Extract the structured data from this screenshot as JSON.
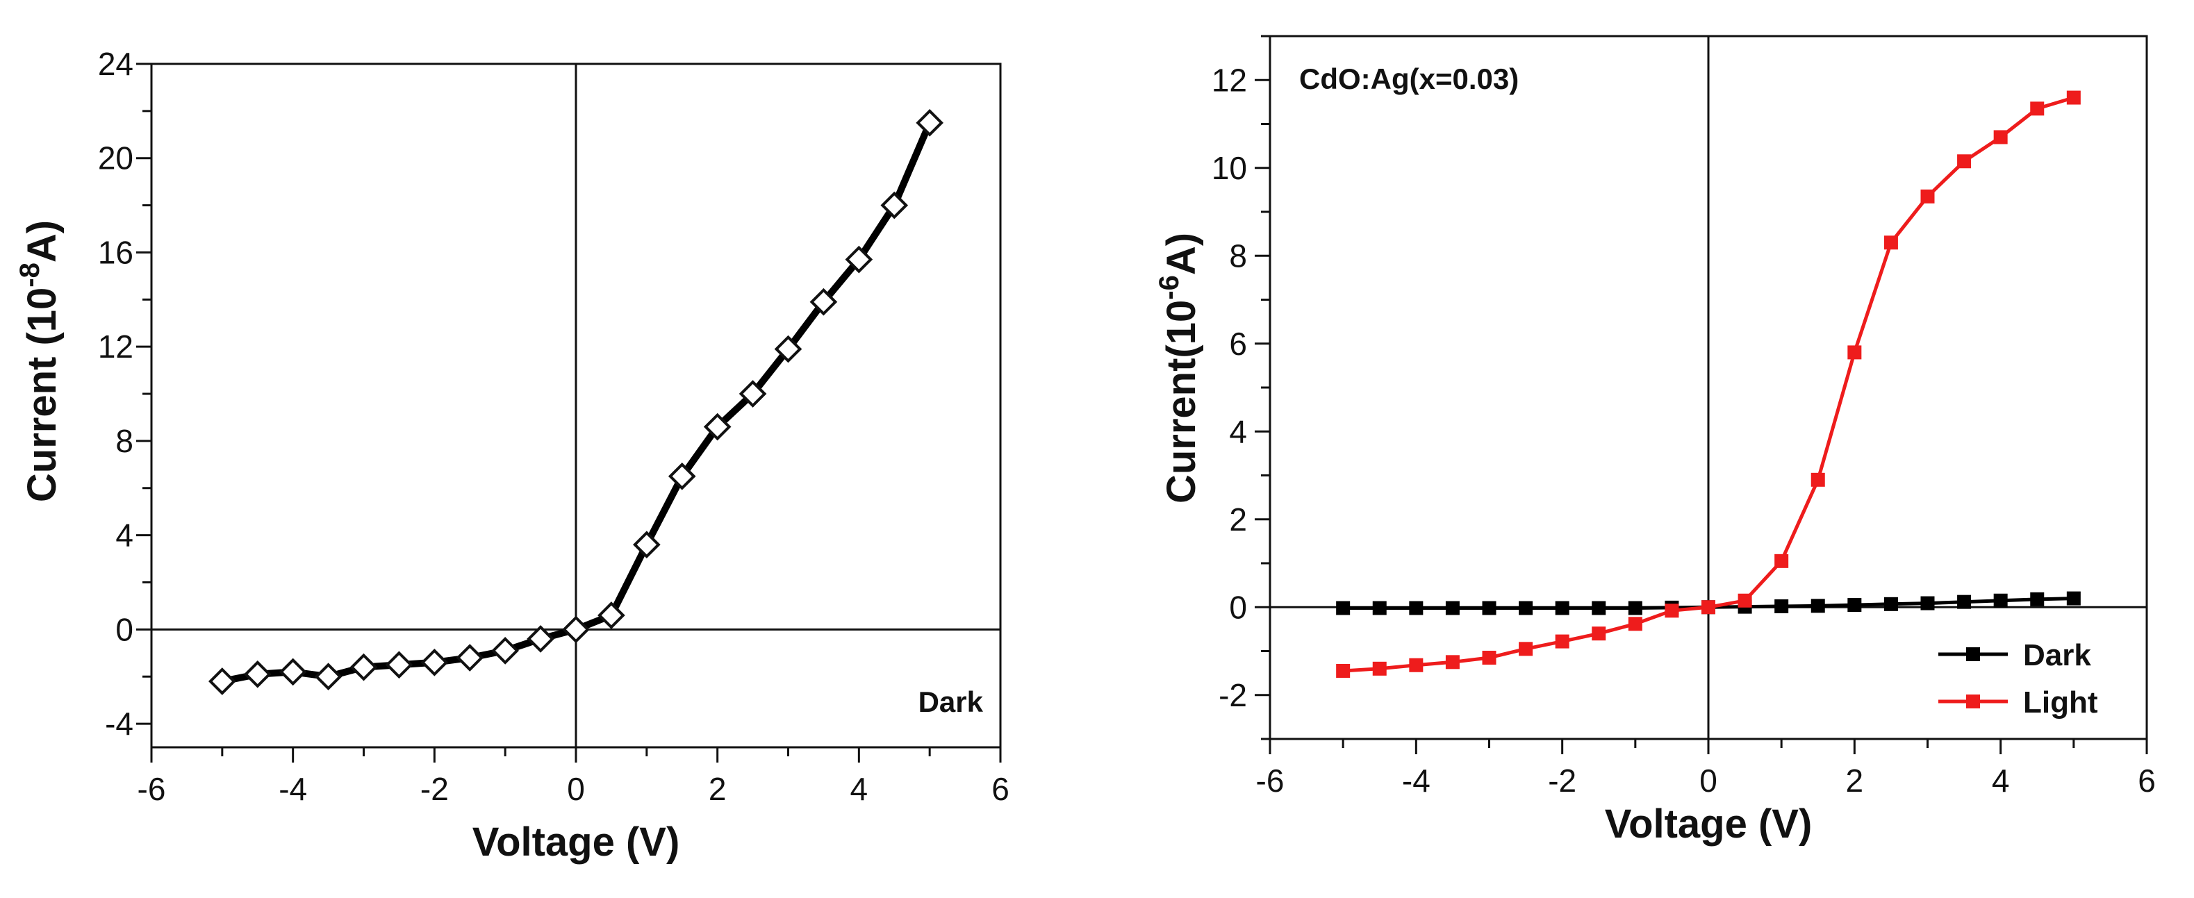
{
  "chart_data": [
    {
      "type": "line",
      "xlabel": "Voltage (V)",
      "ylabel_main": "Current (10",
      "ylabel_sup": "-8",
      "ylabel_tail": "A)",
      "annotation": "Dark",
      "xlim": [
        -6,
        6
      ],
      "ylim": [
        -5,
        24
      ],
      "xticks": [
        -6,
        -4,
        -2,
        0,
        2,
        4,
        6
      ],
      "yticks": [
        -4,
        0,
        4,
        8,
        12,
        16,
        20,
        24
      ],
      "series": [
        {
          "name": "Dark",
          "color": "#000000",
          "marker": "diamond",
          "x": [
            -5,
            -4.5,
            -4,
            -3.5,
            -3,
            -2.5,
            -2,
            -1.5,
            -1,
            -0.5,
            0,
            0.5,
            1,
            1.5,
            2,
            2.5,
            3,
            3.5,
            4,
            4.5,
            5
          ],
          "y": [
            -2.2,
            -1.9,
            -1.8,
            -2.0,
            -1.6,
            -1.5,
            -1.4,
            -1.2,
            -0.9,
            -0.4,
            0,
            0.6,
            3.6,
            6.5,
            8.6,
            10.0,
            11.9,
            13.9,
            15.7,
            18.0,
            21.5
          ]
        }
      ]
    },
    {
      "type": "line",
      "xlabel": "Voltage (V)",
      "ylabel_main": "Current(10",
      "ylabel_sup": "-6",
      "ylabel_tail": "A)",
      "annotation": "CdO:Ag(x=0.03)",
      "xlim": [
        -6,
        6
      ],
      "ylim": [
        -3,
        13
      ],
      "xticks": [
        -6,
        -4,
        -2,
        0,
        2,
        4,
        6
      ],
      "yticks": [
        -2,
        0,
        2,
        4,
        6,
        8,
        10,
        12
      ],
      "legend_position": "bottom-right",
      "series": [
        {
          "name": "Dark",
          "color": "#000000",
          "marker": "square",
          "x": [
            -5,
            -4.5,
            -4,
            -3.5,
            -3,
            -2.5,
            -2,
            -1.5,
            -1,
            -0.5,
            0,
            0.5,
            1,
            1.5,
            2,
            2.5,
            3,
            3.5,
            4,
            4.5,
            5
          ],
          "y": [
            -0.02,
            -0.02,
            -0.02,
            -0.02,
            -0.02,
            -0.02,
            -0.02,
            -0.02,
            -0.02,
            -0.01,
            0,
            0.01,
            0.02,
            0.03,
            0.05,
            0.07,
            0.09,
            0.12,
            0.15,
            0.18,
            0.2
          ]
        },
        {
          "name": "Light",
          "color": "#ee1c1c",
          "marker": "square",
          "x": [
            -5,
            -4.5,
            -4,
            -3.5,
            -3,
            -2.5,
            -2,
            -1.5,
            -1,
            -0.5,
            0,
            0.5,
            1,
            1.5,
            2,
            2.5,
            3,
            3.5,
            4,
            4.5,
            5
          ],
          "y": [
            -1.45,
            -1.4,
            -1.32,
            -1.25,
            -1.15,
            -0.95,
            -0.78,
            -0.6,
            -0.38,
            -0.08,
            0,
            0.15,
            1.05,
            2.9,
            5.8,
            8.3,
            9.35,
            10.15,
            10.7,
            11.35,
            11.6
          ]
        }
      ]
    }
  ]
}
